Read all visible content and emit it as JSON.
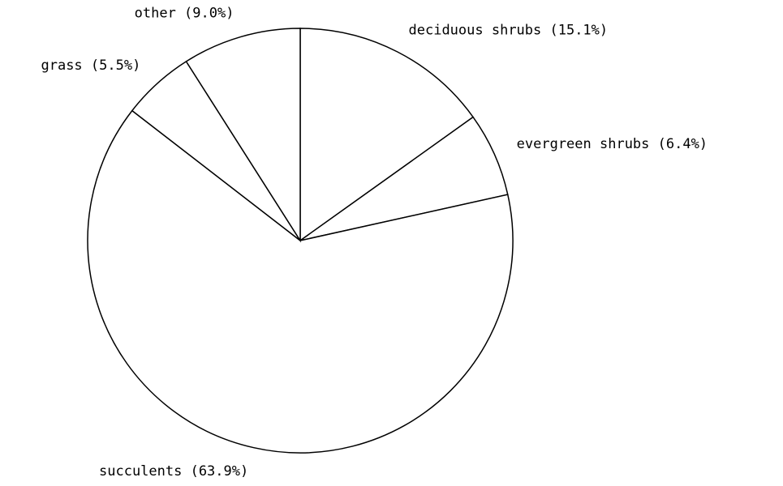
{
  "chart_data": {
    "type": "pie",
    "values": [
      15.1,
      6.4,
      63.9,
      5.5,
      9.0
    ],
    "value_labels": [
      "deciduous shrubs (15.1%)",
      "evergreen shrubs (6.4%)",
      "succulents (63.9%)",
      "grass (5.5%)",
      "other (9.0%)"
    ],
    "color": "#ffffff",
    "edge_color": "#000000"
  }
}
